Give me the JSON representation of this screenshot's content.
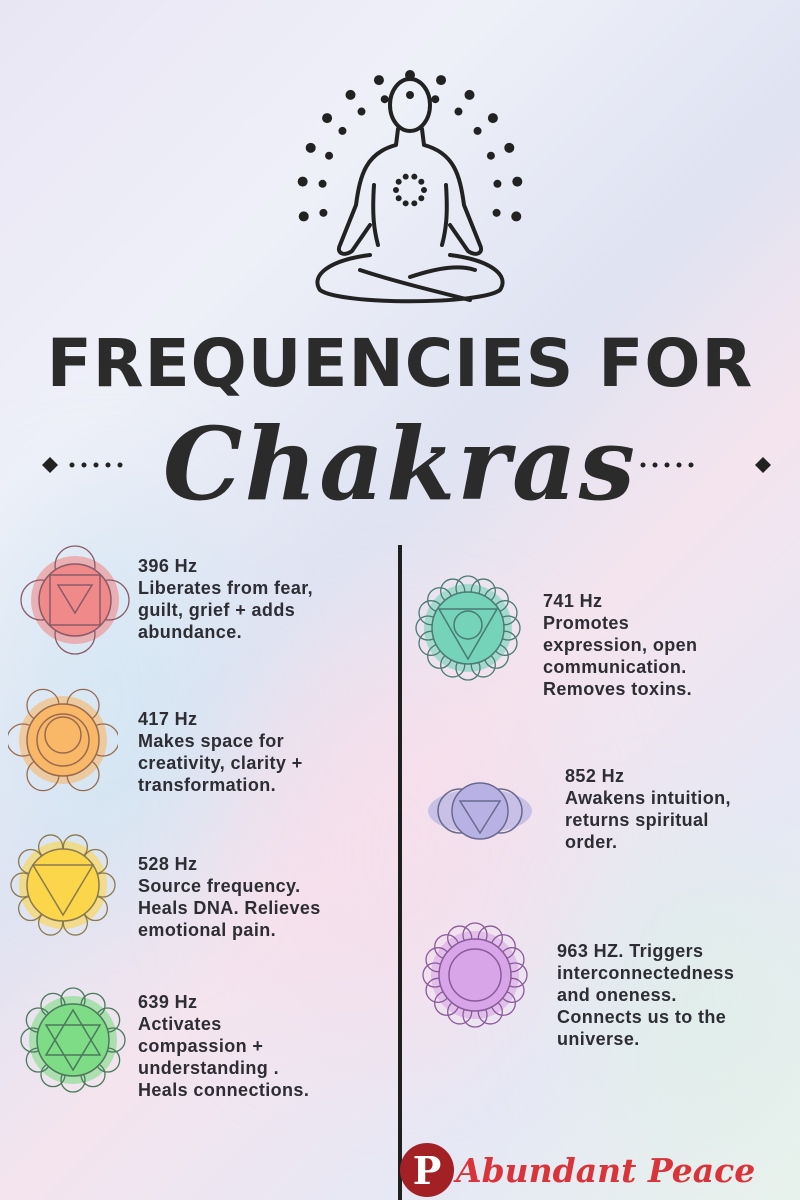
{
  "title": {
    "line1": "FREQUENCIES FOR",
    "line2": "Chakras"
  },
  "chakras": [
    {
      "hz": "396 Hz",
      "lines": [
        "Liberates from fear,",
        "guilt, grief + adds",
        "abundance."
      ],
      "color": "#f08a8a",
      "stroke": "#8a5a66",
      "shape": "square-triangle"
    },
    {
      "hz": "417 Hz",
      "lines": [
        "Makes space for",
        "creativity, clarity +",
        "transformation."
      ],
      "color": "#f9b768",
      "stroke": "#9a6a50",
      "shape": "circle-moon"
    },
    {
      "hz": "528 Hz",
      "lines": [
        "Source frequency.",
        "Heals DNA. Relieves",
        "emotional pain."
      ],
      "color": "#fbd64a",
      "stroke": "#8a7a50",
      "shape": "triangle"
    },
    {
      "hz": "639 Hz",
      "lines": [
        "Activates",
        "compassion +",
        "understanding .",
        "Heals connections."
      ],
      "color": "#7edc86",
      "stroke": "#4a7a5a",
      "shape": "star"
    },
    {
      "hz": "741 Hz",
      "lines": [
        "Promotes",
        "expression, open",
        "communication.",
        "Removes toxins."
      ],
      "color": "#74d3b8",
      "stroke": "#4a7a72",
      "shape": "triangle-circle"
    },
    {
      "hz": "852 Hz",
      "lines": [
        "Awakens intuition,",
        "returns spiritual",
        "order."
      ],
      "color": "#b7b2e3",
      "stroke": "#6a6a90",
      "shape": "eye"
    },
    {
      "hz": "963 HZ. Triggers",
      "lines": [
        "interconnectedness",
        "and oneness.",
        "Connects us to the",
        "universe."
      ],
      "color": "#d8a6e8",
      "stroke": "#8a5a9a",
      "shape": "lotus"
    }
  ],
  "watermark": {
    "icon": "pinterest-icon",
    "pin_letter": "P",
    "text": "Abundant Peace",
    "color": "#d9343a"
  }
}
